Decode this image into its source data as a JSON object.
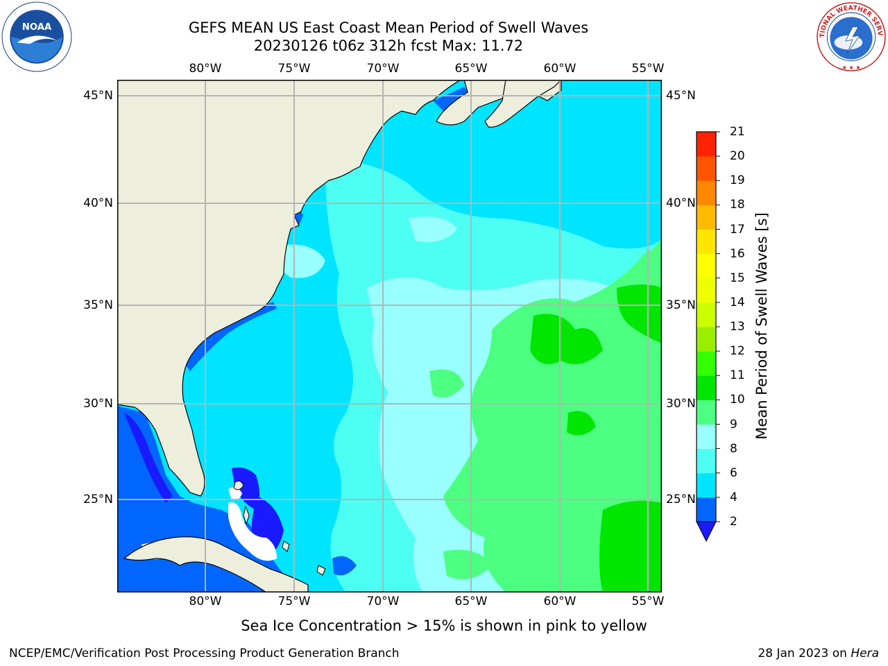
{
  "header": {
    "title_line1": "GEFS MEAN US East Coast Mean Period of Swell Waves",
    "title_line2": "20230126 t06z 312h fcst   Max: 11.72"
  },
  "logos": {
    "left": {
      "icon": "noaa-logo",
      "text": "NOAA"
    },
    "right": {
      "icon": "nws-logo",
      "text": "NATIONAL WEATHER SERVICE"
    }
  },
  "map": {
    "longitude_labels": [
      "80°W",
      "75°W",
      "70°W",
      "65°W",
      "60°W",
      "55°W"
    ],
    "latitude_labels": [
      "45°N",
      "40°N",
      "35°N",
      "30°N",
      "25°N"
    ],
    "land_color": "#eeeedc",
    "grid_color": "#b4b4b4"
  },
  "colorbar": {
    "title": "Mean Period of Swell Waves [s]",
    "tick_labels": [
      "2",
      "4",
      "6",
      "8",
      "9",
      "10",
      "11",
      "12",
      "13",
      "14",
      "15",
      "16",
      "17",
      "18",
      "19",
      "20",
      "21"
    ],
    "colors": [
      "#0066ff",
      "#00e5ff",
      "#4dfff2",
      "#99ffff",
      "#4dff80",
      "#00e600",
      "#33ff00",
      "#99ee00",
      "#ccff00",
      "#eeff00",
      "#ffff00",
      "#ffe600",
      "#ffbb00",
      "#ff8800",
      "#ff5500",
      "#ff2200"
    ],
    "under_color": "#1a1aff"
  },
  "footer": {
    "ice_note": "Sea Ice Concentration > 15% is shown in pink to yellow",
    "credit_left": "NCEP/EMC/Verification Post Processing Product Generation Branch",
    "credit_right_date": "28 Jan 2023 on ",
    "credit_right_host": "Hera"
  }
}
